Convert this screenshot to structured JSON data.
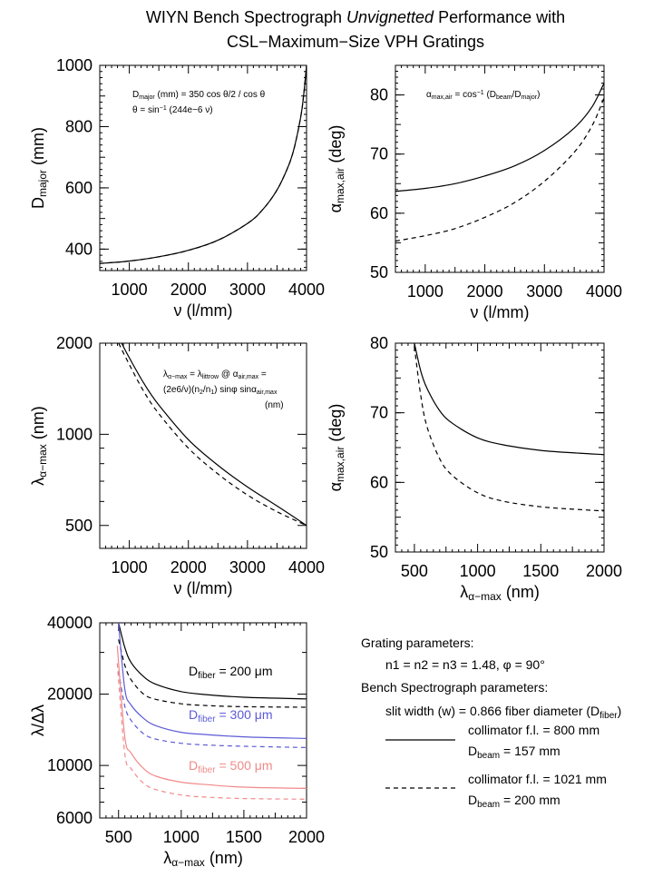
{
  "title": {
    "line1_prefix": "WIYN Bench Spectrograph ",
    "line1_italic": "Unvignetted",
    "line1_suffix": " Performance with",
    "line2": "CSL−Maximum−Size VPH Gratings"
  },
  "colors": {
    "black": "#000000",
    "blue": "#5b5bd6",
    "pink": "#f08a8a"
  },
  "chart_data": [
    {
      "id": "p1",
      "type": "line",
      "xlabel": {
        "base": "ν (l/mm)"
      },
      "ylabel": {
        "base": "D",
        "sub": "major",
        "tail": " (mm)"
      },
      "xlim": [
        500,
        4000
      ],
      "ylim": [
        330,
        1000
      ],
      "xticks": [
        1000,
        2000,
        3000,
        4000
      ],
      "yticks": [
        400,
        600,
        800,
        1000
      ],
      "annotations": [
        {
          "parts": [
            [
              "D",
              ""
            ],
            [
              "major",
              "sub"
            ],
            [
              " (mm) = 350 cos θ/2 / cos θ",
              ""
            ]
          ]
        },
        {
          "parts": [
            [
              "θ = sin",
              ""
            ],
            [
              "−1",
              "sup"
            ],
            [
              " (244e−6 ν)",
              ""
            ]
          ]
        }
      ],
      "series": [
        {
          "name": "collimator f.l. = 800 mm",
          "color": "#000000",
          "dash": "solid",
          "x": [
            500,
            1000,
            1500,
            2000,
            2500,
            3000,
            3250,
            3500,
            3700,
            3800,
            3900,
            3950,
            4000
          ],
          "y": [
            353,
            361,
            375,
            396,
            429,
            484,
            527,
            593,
            675,
            737,
            830,
            900,
            1000
          ]
        },
        {
          "name": "collimator f.l. = 1021 mm",
          "color": "#000000",
          "dash": "dashed",
          "x": [
            500,
            1000,
            1500,
            2000,
            2500,
            3000,
            3250,
            3500,
            3700,
            3800,
            3900,
            3950,
            4000
          ],
          "y": [
            353,
            361,
            375,
            396,
            429,
            484,
            527,
            593,
            675,
            737,
            830,
            900,
            1000
          ]
        }
      ]
    },
    {
      "id": "p2",
      "type": "line",
      "xlabel": {
        "base": "ν (l/mm)"
      },
      "ylabel": {
        "base": "α",
        "sub": "max,air",
        "tail": " (deg)"
      },
      "xlim": [
        500,
        4000
      ],
      "ylim": [
        50,
        85
      ],
      "xticks": [
        1000,
        2000,
        3000,
        4000
      ],
      "yticks": [
        50,
        60,
        70,
        80
      ],
      "annotations": [
        {
          "parts": [
            [
              "α",
              ""
            ],
            [
              "max,air",
              "sub"
            ],
            [
              " = cos",
              ""
            ],
            [
              "−1",
              "sup"
            ],
            [
              " (D",
              ""
            ],
            [
              "beam",
              "sub"
            ],
            [
              "/D",
              ""
            ],
            [
              "major",
              "sub"
            ],
            [
              ")",
              ""
            ]
          ]
        }
      ],
      "series": [
        {
          "name": "collimator f.l. = 800 mm",
          "color": "#000000",
          "dash": "solid",
          "x": [
            500,
            1000,
            1500,
            2000,
            2500,
            3000,
            3500,
            3800,
            4000
          ],
          "y": [
            63.7,
            64.2,
            65.0,
            66.3,
            68.0,
            70.6,
            74.4,
            78.0,
            82.0
          ]
        },
        {
          "name": "collimator f.l. = 1021 mm",
          "color": "#000000",
          "dash": "dashed",
          "x": [
            500,
            1000,
            1500,
            2000,
            2500,
            3000,
            3500,
            3800,
            4000
          ],
          "y": [
            55.3,
            56.2,
            57.4,
            59.3,
            61.8,
            65.4,
            70.3,
            74.8,
            79.5
          ]
        }
      ]
    },
    {
      "id": "p3",
      "type": "line",
      "xlabel": {
        "base": "ν (l/mm)"
      },
      "ylabel": {
        "base": "λ",
        "sub": "α−max",
        "tail": " (nm)"
      },
      "xlim": [
        500,
        4000
      ],
      "ylim": [
        420,
        2000
      ],
      "ylog": true,
      "xticks": [
        1000,
        2000,
        3000,
        4000
      ],
      "yticks": [
        500,
        1000,
        2000
      ],
      "yminor": [
        600,
        700,
        800,
        900
      ],
      "annotations": [
        {
          "parts": [
            [
              "λ",
              ""
            ],
            [
              "α−max",
              "sub"
            ],
            [
              "  =  λ",
              ""
            ],
            [
              "littrow",
              "sub"
            ],
            [
              " @ α",
              ""
            ],
            [
              "air,max",
              "sub"
            ],
            [
              " =",
              ""
            ]
          ]
        },
        {
          "parts": [
            [
              "(2e6/ν)(n",
              ""
            ],
            [
              "2",
              "sub"
            ],
            [
              "/n",
              ""
            ],
            [
              "1",
              "sub"
            ],
            [
              ") sinφ sinα",
              ""
            ],
            [
              "air,max",
              "sub"
            ]
          ]
        },
        {
          "parts": [
            [
              "(nm)",
              ""
            ]
          ]
        }
      ],
      "series": [
        {
          "name": "collimator f.l. = 800 mm",
          "color": "#000000",
          "dash": "solid",
          "x": [
            870,
            1000,
            1250,
            1500,
            2000,
            2500,
            3000,
            3500,
            4000
          ],
          "y": [
            2000,
            1790,
            1470,
            1250,
            960,
            790,
            670,
            580,
            500
          ]
        },
        {
          "name": "collimator f.l. = 1021 mm",
          "color": "#000000",
          "dash": "dashed",
          "x": [
            820,
            1000,
            1250,
            1500,
            2000,
            2500,
            3000,
            3500,
            4000
          ],
          "y": [
            2000,
            1700,
            1380,
            1170,
            900,
            740,
            630,
            555,
            500
          ]
        }
      ]
    },
    {
      "id": "p4",
      "type": "line",
      "xlabel": {
        "base": "λ",
        "sub": "α−max",
        "tail": " (nm)"
      },
      "ylabel": {
        "base": "α",
        "sub": "max,air",
        "tail": " (deg)"
      },
      "xlim": [
        350,
        2000
      ],
      "ylim": [
        50,
        80
      ],
      "xticks": [
        500,
        1000,
        1500,
        2000
      ],
      "yticks": [
        50,
        60,
        70,
        80
      ],
      "annotations": [],
      "series": [
        {
          "name": "collimator f.l. = 800 mm",
          "color": "#000000",
          "dash": "solid",
          "x": [
            500,
            550,
            600,
            700,
            800,
            1000,
            1200,
            1500,
            1800,
            2000
          ],
          "y": [
            80,
            76.0,
            73.5,
            70.3,
            68.5,
            66.4,
            65.4,
            64.6,
            64.2,
            64.0
          ]
        },
        {
          "name": "collimator f.l. = 1021 mm",
          "color": "#000000",
          "dash": "dashed",
          "x": [
            500,
            550,
            600,
            700,
            800,
            1000,
            1200,
            1500,
            1800,
            2000
          ],
          "y": [
            79.5,
            72.5,
            68.0,
            63.4,
            61.0,
            58.5,
            57.3,
            56.5,
            56.1,
            55.9
          ]
        }
      ]
    },
    {
      "id": "p5",
      "type": "line",
      "xlabel": {
        "base": "λ",
        "sub": "α−max",
        "tail": " (nm)"
      },
      "ylabel": {
        "base": "λ/Δλ"
      },
      "xlim": [
        350,
        2000
      ],
      "ylim": [
        6000,
        40000
      ],
      "ylog": true,
      "xticks": [
        500,
        1000,
        1500,
        2000
      ],
      "yticks": [
        6000,
        10000,
        20000,
        40000
      ],
      "yminor": [
        7000,
        8000,
        9000,
        30000
      ],
      "annotations": [],
      "curve_labels": [
        {
          "color": "#000000",
          "parts": [
            [
              "D",
              ""
            ],
            [
              "fiber",
              "sub"
            ],
            [
              " = 200 μm",
              ""
            ]
          ]
        },
        {
          "color": "#5b5bd6",
          "parts": [
            [
              "D",
              ""
            ],
            [
              "fiber",
              "sub"
            ],
            [
              " = 300 μm",
              ""
            ]
          ]
        },
        {
          "color": "#f08a8a",
          "parts": [
            [
              "D",
              ""
            ],
            [
              "fiber",
              "sub"
            ],
            [
              " = 500 μm",
              ""
            ]
          ]
        }
      ],
      "series": [
        {
          "name": "200 μm, 800 mm",
          "color": "#000000",
          "dash": "solid",
          "x": [
            500,
            550,
            600,
            700,
            800,
            1000,
            1200,
            1500,
            2000
          ],
          "y": [
            40000,
            31500,
            27200,
            23700,
            22000,
            20500,
            19900,
            19400,
            19100
          ]
        },
        {
          "name": "200 μm, 1021 mm",
          "color": "#000000",
          "dash": "dashed",
          "x": [
            500,
            550,
            600,
            700,
            800,
            1000,
            1200,
            1500,
            2000
          ],
          "y": [
            34000,
            26500,
            23000,
            20000,
            19000,
            18200,
            17900,
            17700,
            17600
          ]
        },
        {
          "name": "300 μm, 800 mm",
          "color": "#5b5bd6",
          "dash": "solid",
          "x": [
            500,
            550,
            600,
            700,
            800,
            1000,
            1200,
            1500,
            2000
          ],
          "y": [
            40000,
            21000,
            18000,
            15800,
            14700,
            13800,
            13500,
            13200,
            13000
          ]
        },
        {
          "name": "300 μm, 1021 mm",
          "color": "#5b5bd6",
          "dash": "dashed",
          "x": [
            500,
            550,
            600,
            700,
            800,
            1000,
            1200,
            1500,
            2000
          ],
          "y": [
            25000,
            17800,
            15500,
            13600,
            12900,
            12400,
            12200,
            12050,
            11900
          ]
        },
        {
          "name": "500 μm, 800 mm",
          "color": "#f08a8a",
          "dash": "solid",
          "x": [
            490,
            550,
            600,
            700,
            800,
            1000,
            1200,
            1500,
            2000
          ],
          "y": [
            32000,
            13200,
            11300,
            9700,
            9000,
            8500,
            8300,
            8100,
            8000
          ]
        },
        {
          "name": "500 μm, 1021 mm",
          "color": "#f08a8a",
          "dash": "dashed",
          "x": [
            490,
            550,
            600,
            700,
            800,
            1000,
            1200,
            1500,
            2000
          ],
          "y": [
            27000,
            11200,
            9700,
            8400,
            7900,
            7500,
            7350,
            7250,
            7200
          ]
        }
      ]
    }
  ],
  "legend": {
    "grating_header": "Grating parameters:",
    "grating_line": "n1 = n2 = n3 = 1.48,   φ = 90°",
    "bench_header": "Bench Spectrograph parameters:",
    "slit_parts": [
      [
        "slit width (w) = 0.866 fiber diameter (D",
        ""
      ],
      [
        "fiber",
        "sub"
      ],
      [
        ")",
        ""
      ]
    ],
    "entries": [
      {
        "dash": "solid",
        "line1": "collimator f.l. = 800 mm",
        "line2_parts": [
          [
            "D",
            ""
          ],
          [
            "beam",
            "sub"
          ],
          [
            " = 157 mm",
            ""
          ]
        ]
      },
      {
        "dash": "dashed",
        "line1": "collimator f.l. = 1021 mm",
        "line2_parts": [
          [
            "D",
            ""
          ],
          [
            "beam",
            "sub"
          ],
          [
            " = 200 mm",
            ""
          ]
        ]
      }
    ]
  }
}
